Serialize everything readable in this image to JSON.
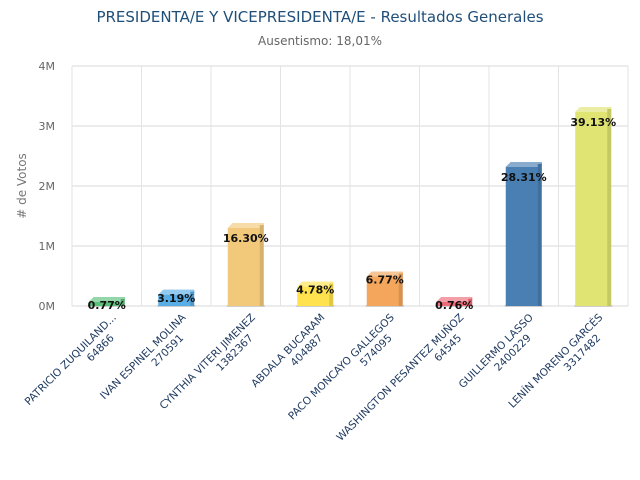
{
  "chart_data": {
    "type": "bar",
    "title": "PRESIDENTA/E Y VICEPRESIDENTA/E - Resultados Generales",
    "subtitle": "Ausentismo: 18,01%",
    "ylabel": "# de Votos",
    "xlabel": "",
    "ylim": [
      0,
      4000000
    ],
    "yticks": [
      {
        "value": 0,
        "label": "0M"
      },
      {
        "value": 1000000,
        "label": "1M"
      },
      {
        "value": 2000000,
        "label": "2M"
      },
      {
        "value": 3000000,
        "label": "3M"
      },
      {
        "value": 4000000,
        "label": "4M"
      }
    ],
    "grid": true,
    "legend": "none",
    "categories": [
      {
        "name": "PATRICIO ZUQUILAND...",
        "votes_label": "64866",
        "value": 64866,
        "pct": "0.77%",
        "color": "#5bbf7a"
      },
      {
        "name": "IVAN ESPINEL MOLINA",
        "votes_label": "270591",
        "value": 270591,
        "pct": "3.19%",
        "color": "#5aaee6"
      },
      {
        "name": "CYNTHIA VITERI JIMENEZ",
        "votes_label": "1382367",
        "value": 1382367,
        "pct": "16.30%",
        "color": "#f2c97a"
      },
      {
        "name": "ABDALA BUCARAM",
        "votes_label": "404887",
        "value": 404887,
        "pct": "4.78%",
        "color": "#ffe24d"
      },
      {
        "name": "PACO MONCAYO GALLEGOS",
        "votes_label": "574095",
        "value": 574095,
        "pct": "6.77%",
        "color": "#f3a65c"
      },
      {
        "name": "WASHINGTON PESANTEZ MUÑOZ",
        "votes_label": "64545",
        "value": 64545,
        "pct": "0.76%",
        "color": "#ee6b78"
      },
      {
        "name": "GUILLERMO LASSO",
        "votes_label": "2400229",
        "value": 2400229,
        "pct": "28.31%",
        "color": "#4a7fb3"
      },
      {
        "name": "LENÍN MORENO GARCÉS",
        "votes_label": "3317482",
        "value": 3317482,
        "pct": "39.13%",
        "color": "#dfe472"
      }
    ]
  }
}
